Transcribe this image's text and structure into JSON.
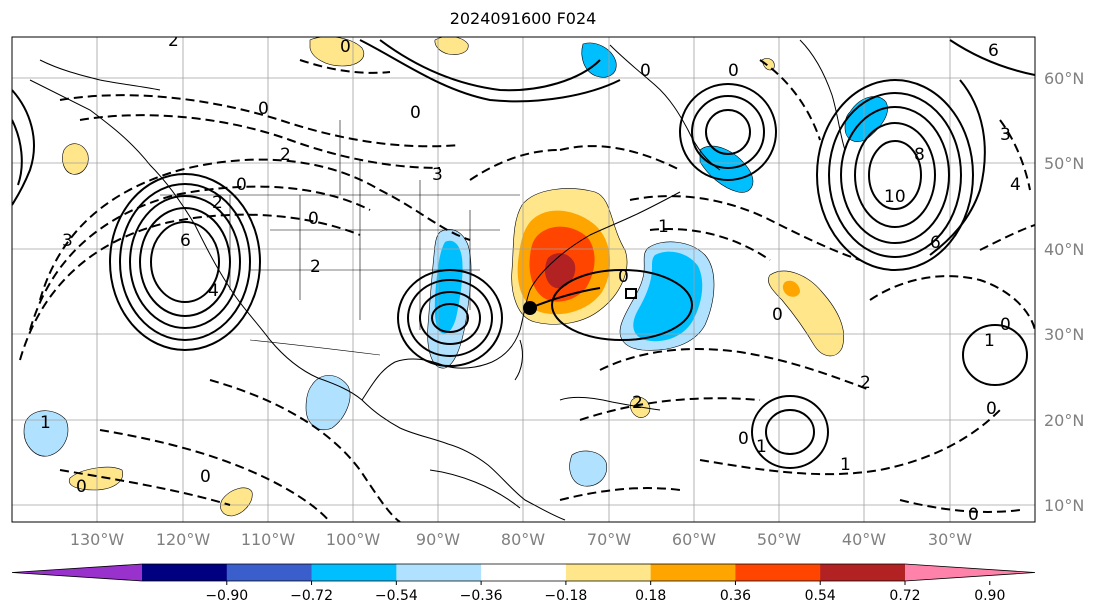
{
  "title": "2024091600 F024",
  "lat_labels": [
    "60°N",
    "50°N",
    "40°N",
    "30°N",
    "20°N",
    "10°N"
  ],
  "lon_labels": [
    "130°W",
    "120°W",
    "110°W",
    "100°W",
    "90°W",
    "80°W",
    "70°W",
    "60°W",
    "50°W",
    "40°W",
    "30°W"
  ],
  "colorbar": {
    "ticks": [
      "−0.90",
      "−0.72",
      "−0.54",
      "−0.36",
      "−0.18",
      "0.18",
      "0.36",
      "0.54",
      "0.72",
      "0.90"
    ],
    "colors": [
      "#9932cc",
      "#000080",
      "#3a5fcd",
      "#00bfff",
      "#b0e2ff",
      "#ffffff",
      "#ffe68a",
      "#ffa500",
      "#ff4500",
      "#b22222",
      "#ff82ab"
    ]
  },
  "contour_labels": [
    "0",
    "2",
    "6",
    "0",
    "4",
    "3",
    "2",
    "0",
    "6",
    "2",
    "0",
    "0",
    "2",
    "0",
    "3",
    "0",
    "6",
    "10",
    "8",
    "4",
    "3",
    "0",
    "1",
    "1",
    "0",
    "1",
    "2",
    "0",
    "1",
    "0",
    "0",
    "0",
    "2",
    "0",
    "1",
    "0"
  ]
}
